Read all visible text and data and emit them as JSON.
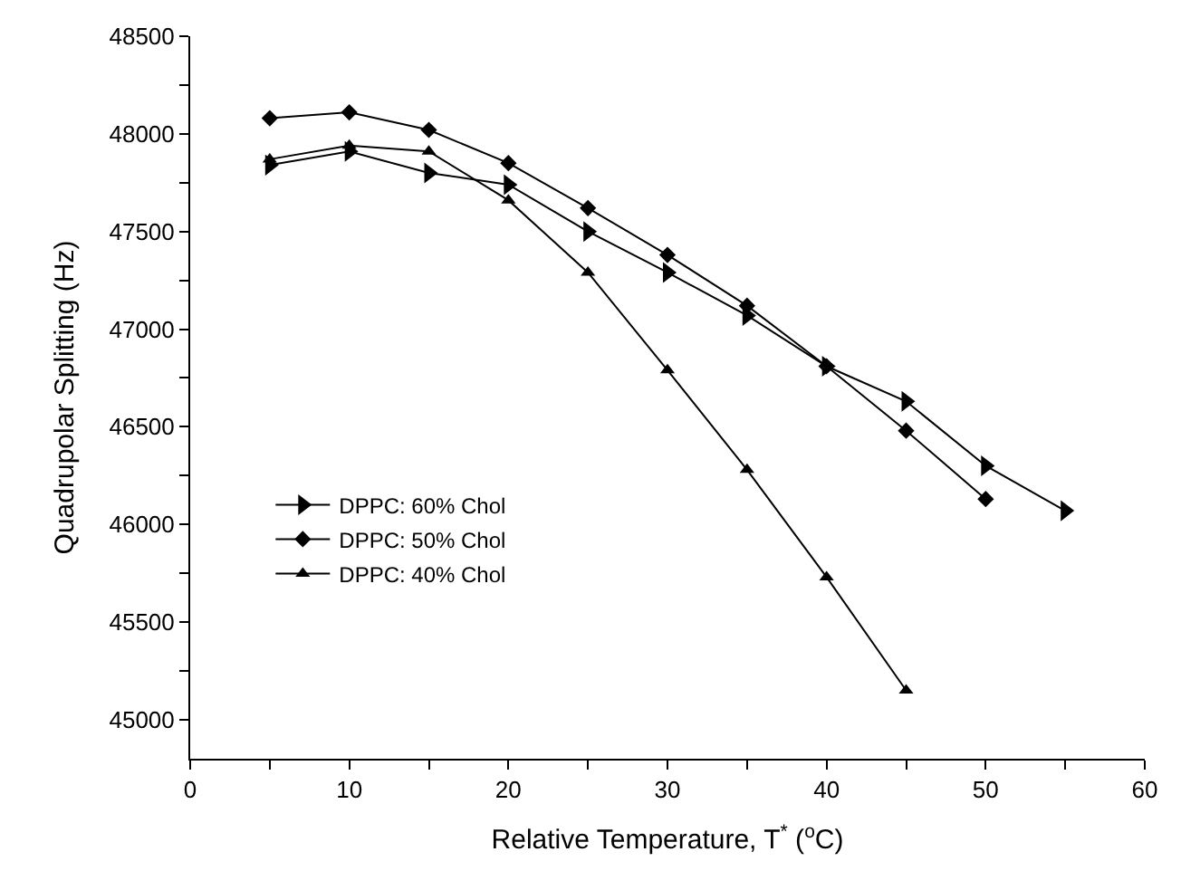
{
  "chart_data": {
    "type": "line",
    "xlabel": "Relative Temperature, T$^{*}$ ($^{o}$C)",
    "ylabel": "Quadrupolar Splitting (Hz)",
    "xlim": [
      0,
      60
    ],
    "xticks": [
      0,
      {
        "value": 5,
        "label": null
      },
      10,
      {
        "value": 15,
        "label": null
      },
      20,
      {
        "value": 25,
        "label": null
      },
      30,
      {
        "value": 35,
        "label": null
      },
      40,
      {
        "value": 45,
        "label": null
      },
      50,
      {
        "value": 55,
        "label": null
      },
      60
    ],
    "ylim": [
      44800,
      48500
    ],
    "yticks": [
      45000,
      {
        "value": 45250,
        "label": null
      },
      45500,
      {
        "value": 45750,
        "label": null
      },
      46000,
      {
        "value": 46250,
        "label": null
      },
      46500,
      {
        "value": 46750,
        "label": null
      },
      47000,
      {
        "value": 47250,
        "label": null
      },
      47500,
      {
        "value": 47750,
        "label": null
      },
      48000,
      {
        "value": 48250,
        "label": null
      },
      48500
    ],
    "legend": "bottom left",
    "line_style": "solid",
    "series": [
      {
        "name": "DPPC: 60% Chol",
        "color": "#000000",
        "marker": "triangle-right",
        "x": [
          5,
          10,
          15,
          20,
          25,
          30,
          35,
          40,
          45,
          50,
          55
        ],
        "values": [
          47840,
          47910,
          47800,
          47740,
          47500,
          47290,
          47070,
          46810,
          46630,
          46300,
          46070
        ]
      },
      {
        "name": "DPPC: 50% Chol",
        "color": "#000000",
        "marker": "diamond",
        "x": [
          5,
          10,
          15,
          20,
          25,
          30,
          35,
          40,
          45,
          50
        ],
        "values": [
          48080,
          48110,
          48020,
          47850,
          47620,
          47380,
          47120,
          46810,
          46480,
          46130
        ]
      },
      {
        "name": "DPPC: 40% Chol",
        "color": "#000000",
        "marker": "triangle",
        "x": [
          5,
          10,
          15,
          20,
          25,
          30,
          35,
          40,
          45
        ],
        "values": [
          47870,
          47940,
          47910,
          47660,
          47290,
          46790,
          46280,
          45730,
          45150
        ]
      }
    ]
  }
}
